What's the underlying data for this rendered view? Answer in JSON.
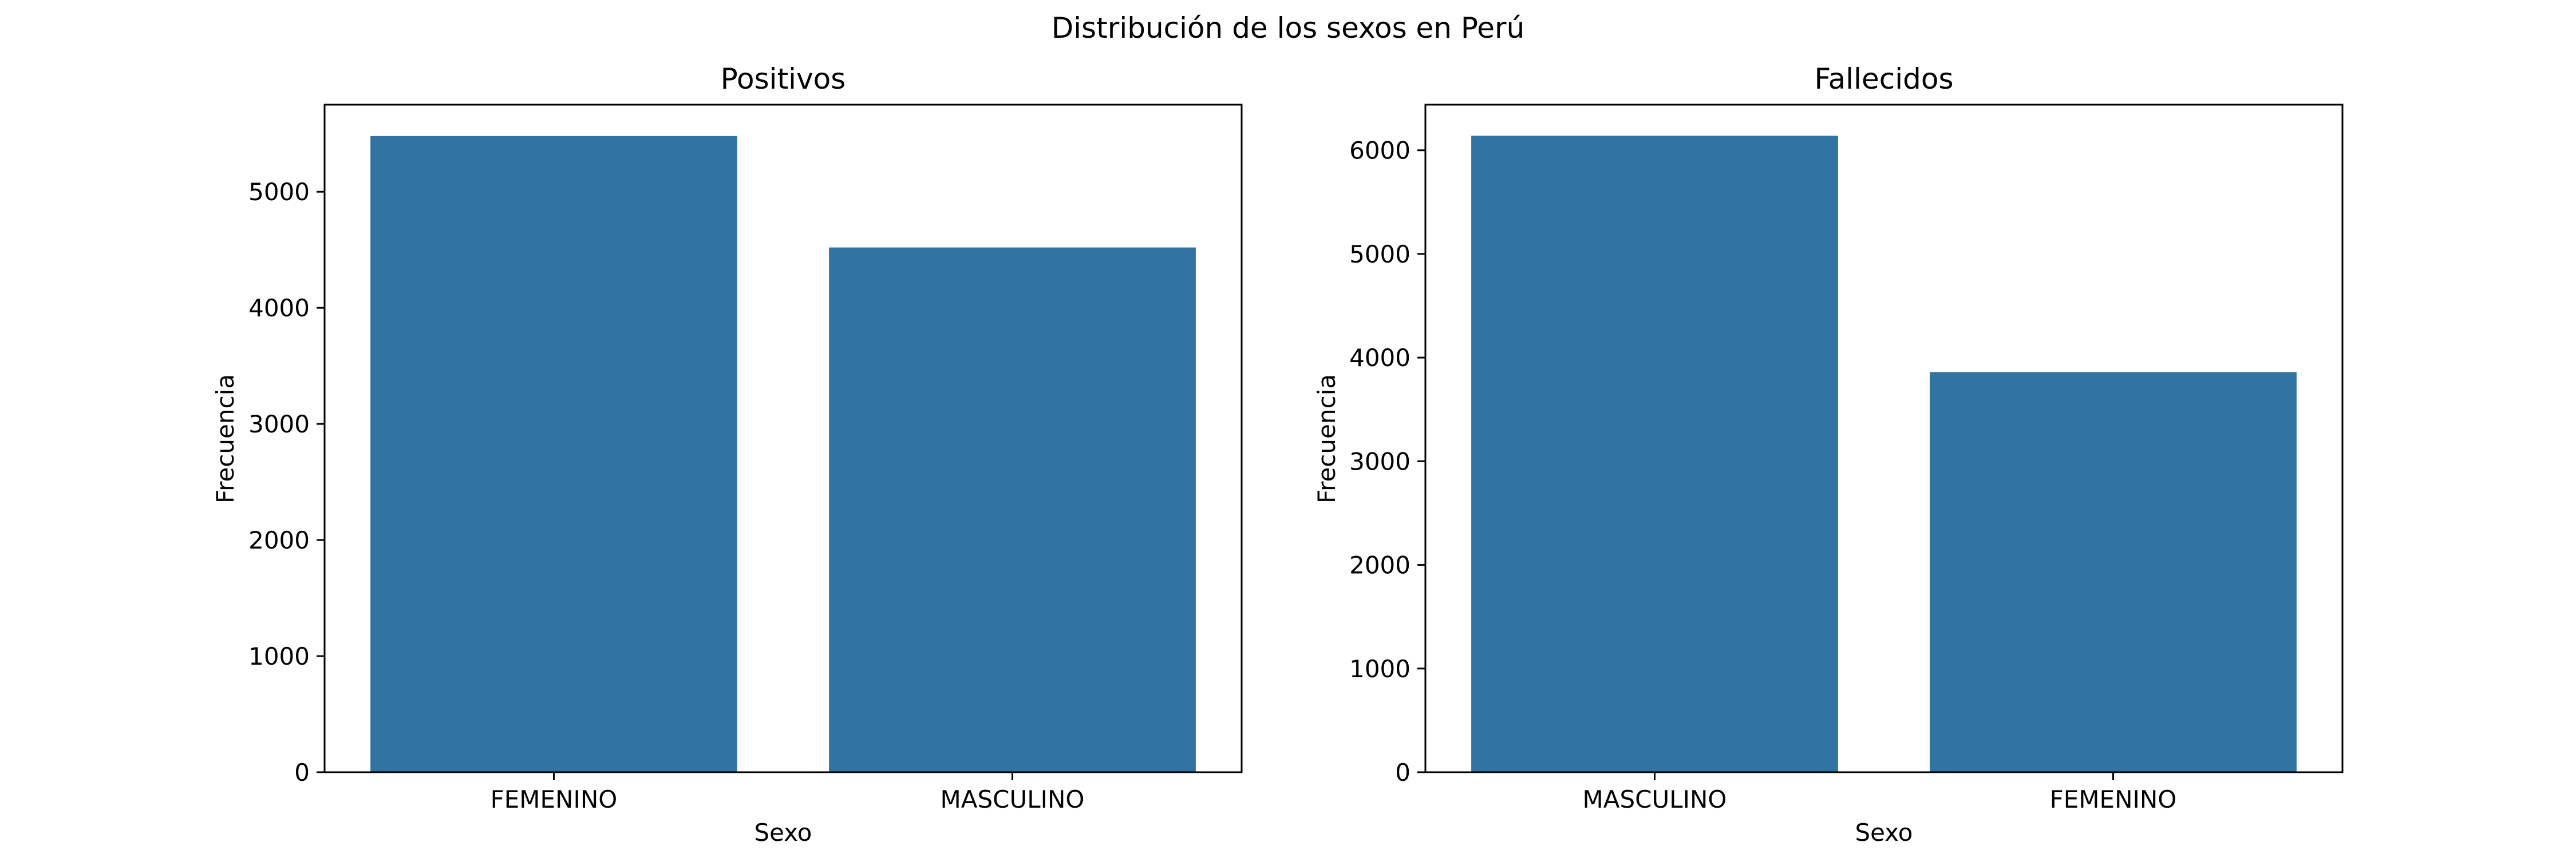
{
  "figure": {
    "suptitle": "Distribución de los sexos en Perú"
  },
  "chart_data": [
    {
      "type": "bar",
      "title": "Positivos",
      "xlabel": "Sexo",
      "ylabel": "Frecuencia",
      "categories": [
        "FEMENINO",
        "MASCULINO"
      ],
      "values": [
        5480,
        4520
      ],
      "ylim": [
        0,
        5750
      ],
      "yticks": [
        0,
        1000,
        2000,
        3000,
        4000,
        5000
      ],
      "grid": false,
      "bar_color": "#3274a1"
    },
    {
      "type": "bar",
      "title": "Fallecidos",
      "xlabel": "Sexo",
      "ylabel": "Frecuencia",
      "categories": [
        "MASCULINO",
        "FEMENINO"
      ],
      "values": [
        6140,
        3860
      ],
      "ylim": [
        0,
        6440
      ],
      "yticks": [
        0,
        1000,
        2000,
        3000,
        4000,
        5000,
        6000
      ],
      "grid": false,
      "bar_color": "#3274a1"
    }
  ]
}
